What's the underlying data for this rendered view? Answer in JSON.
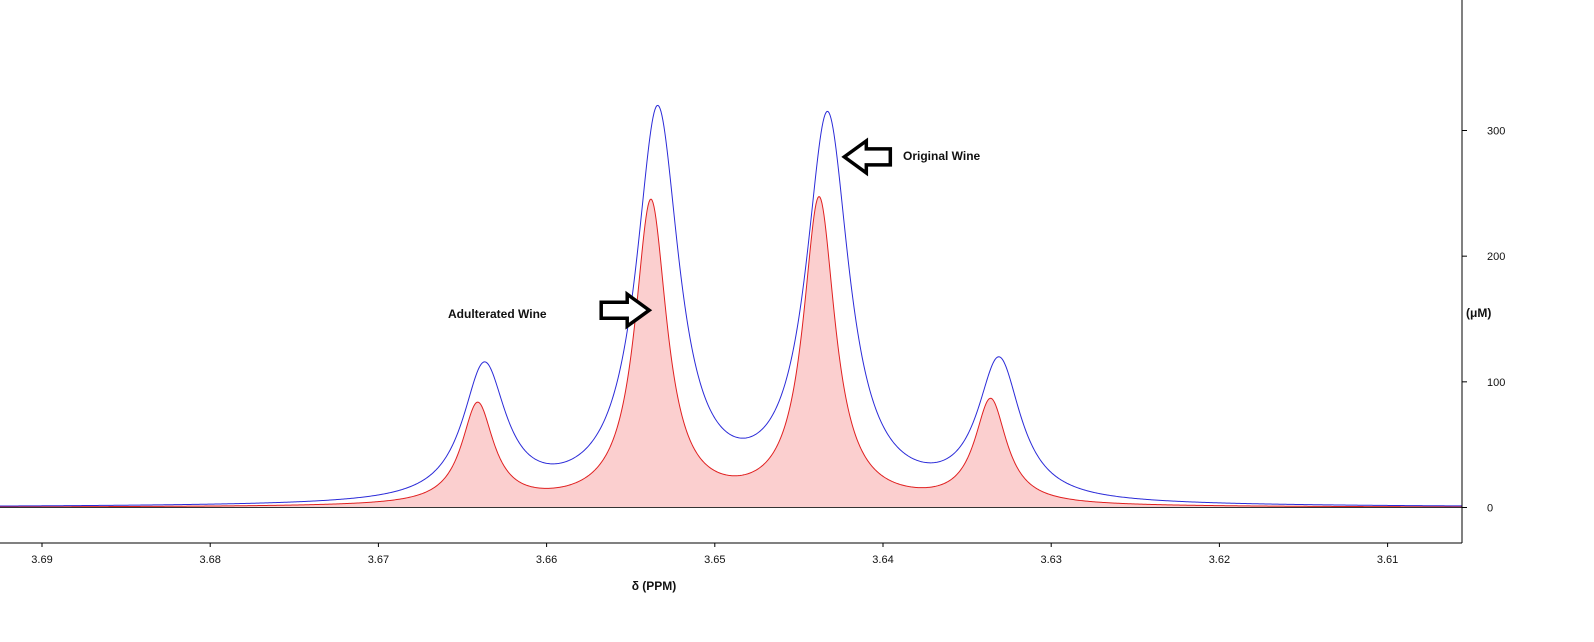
{
  "chart_data": {
    "type": "line",
    "title": "",
    "xlabel": "δ (PPM)",
    "ylabel": "(μM)",
    "x_reversed": true,
    "xlim": [
      3.6935,
      3.605
    ],
    "ylim": [
      -29,
      400
    ],
    "x_ticks": [
      3.69,
      3.68,
      3.67,
      3.66,
      3.65,
      3.64,
      3.63,
      3.62,
      3.61
    ],
    "x_tick_labels": [
      "3.69",
      "3.68",
      "3.67",
      "3.66",
      "3.65",
      "3.64",
      "3.63",
      "3.62",
      "3.61"
    ],
    "y_ticks": [
      0,
      100,
      200,
      300
    ],
    "y_tick_labels": [
      "0",
      "100",
      "200",
      "300"
    ],
    "grid": false,
    "legend": "none",
    "series": [
      {
        "color": "#2b2bd8",
        "fill": false,
        "peaks": [
          {
            "x": 3.6637,
            "height": 107
          },
          {
            "x": 3.6534,
            "height": 310
          },
          {
            "x": 3.6433,
            "height": 305
          },
          {
            "x": 3.6331,
            "height": 111
          }
        ],
        "linewidth_ppm": 0.00155,
        "baseline": 0
      },
      {
        "color": "#e02020",
        "fill": true,
        "fill_color": "#fbcfcf",
        "peaks": [
          {
            "x": 3.6641,
            "height": 80
          },
          {
            "x": 3.6538,
            "height": 241
          },
          {
            "x": 3.6438,
            "height": 243
          },
          {
            "x": 3.6336,
            "height": 83
          }
        ],
        "linewidth_ppm": 0.00115,
        "baseline": 0
      }
    ],
    "annotations": [
      {
        "id": "adulterated",
        "text": "Adulterated Wine",
        "points_to": {
          "x": 3.6539,
          "y": 157
        },
        "arrow_direction": "right"
      },
      {
        "id": "original",
        "text": "Original Wine",
        "points_to": {
          "x": 3.6423,
          "y": 279
        },
        "arrow_direction": "left"
      }
    ]
  }
}
